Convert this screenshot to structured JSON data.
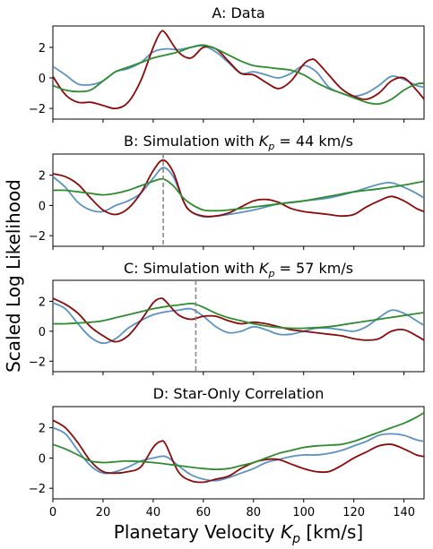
{
  "figure": {
    "ylabel": "Scaled Log Likelihood",
    "xlabel_main": "Planetary Velocity ",
    "xlabel_sym": "K",
    "xlabel_sub": "p",
    "xlabel_unit": " [km/s]"
  },
  "colors": {
    "blue": "#5b92c2",
    "red": "#8b0a0a",
    "green": "#2e8b2e",
    "marker": "#888888"
  },
  "chart_data": [
    {
      "type": "line",
      "title": "A: Data",
      "xlim": [
        0,
        148
      ],
      "ylim": [
        -2.7,
        3.4
      ],
      "xticks": [
        0,
        20,
        40,
        60,
        80,
        100,
        120,
        140
      ],
      "yticks": [
        -2,
        0,
        2
      ],
      "xticklabels_visible": false,
      "series": [
        {
          "color_key": "blue",
          "x": [
            0,
            5,
            10,
            15,
            20,
            25,
            30,
            35,
            40,
            45,
            50,
            55,
            60,
            65,
            70,
            75,
            80,
            85,
            90,
            95,
            100,
            105,
            110,
            115,
            120,
            125,
            130,
            135,
            140,
            145,
            148
          ],
          "y": [
            0.75,
            0.2,
            -0.4,
            -0.45,
            -0.2,
            0.4,
            0.6,
            1.0,
            1.7,
            1.9,
            1.85,
            2.0,
            2.1,
            1.7,
            1.0,
            0.3,
            0.4,
            0.2,
            0.0,
            0.3,
            0.8,
            0.4,
            -0.6,
            -1.0,
            -1.2,
            -1.0,
            -0.5,
            0.1,
            -0.1,
            -0.5,
            -0.6
          ]
        },
        {
          "color_key": "red",
          "x": [
            0,
            5,
            10,
            15,
            20,
            25,
            30,
            35,
            40,
            43,
            45,
            50,
            55,
            60,
            65,
            70,
            75,
            80,
            85,
            90,
            95,
            100,
            103,
            105,
            110,
            115,
            120,
            125,
            130,
            135,
            140,
            145,
            148
          ],
          "y": [
            0.1,
            -1.1,
            -1.6,
            -1.6,
            -1.8,
            -2.0,
            -1.6,
            -0.2,
            2.0,
            3.0,
            2.9,
            1.7,
            1.3,
            2.0,
            1.9,
            1.1,
            0.3,
            0.2,
            -0.3,
            -0.7,
            -0.2,
            0.9,
            1.2,
            1.1,
            0.2,
            -0.7,
            -1.2,
            -1.4,
            -1.0,
            -0.2,
            0.0,
            -0.8,
            -1.4
          ]
        },
        {
          "color_key": "green",
          "x": [
            0,
            5,
            10,
            15,
            20,
            25,
            30,
            35,
            40,
            45,
            50,
            55,
            60,
            65,
            70,
            75,
            80,
            85,
            90,
            95,
            100,
            105,
            110,
            115,
            120,
            125,
            130,
            135,
            140,
            145,
            148
          ],
          "y": [
            -0.5,
            -0.8,
            -0.9,
            -0.8,
            -0.2,
            0.4,
            0.7,
            1.0,
            1.3,
            1.5,
            1.7,
            2.0,
            2.15,
            1.9,
            1.5,
            1.1,
            0.8,
            0.7,
            0.6,
            0.5,
            0.2,
            -0.3,
            -0.7,
            -1.0,
            -1.3,
            -1.6,
            -1.7,
            -1.4,
            -0.8,
            -0.4,
            -0.35
          ]
        }
      ]
    },
    {
      "type": "line",
      "title_pre": "B: Simulation with ",
      "title_post": " = 44 km/s",
      "marker_kp": 44,
      "xlim": [
        0,
        148
      ],
      "ylim": [
        -2.7,
        3.4
      ],
      "xticks": [
        0,
        20,
        40,
        60,
        80,
        100,
        120,
        140
      ],
      "yticks": [
        -2,
        0,
        2
      ],
      "xticklabels_visible": false,
      "series": [
        {
          "color_key": "blue",
          "x": [
            0,
            5,
            10,
            15,
            20,
            25,
            30,
            35,
            40,
            44,
            48,
            52,
            55,
            60,
            65,
            70,
            80,
            90,
            100,
            110,
            120,
            130,
            135,
            140,
            145,
            148
          ],
          "y": [
            1.9,
            1.2,
            0.2,
            -0.3,
            -0.4,
            0.0,
            0.3,
            0.8,
            1.8,
            2.5,
            1.9,
            0.3,
            -0.4,
            -0.75,
            -0.7,
            -0.6,
            -0.3,
            0.1,
            0.3,
            0.5,
            0.9,
            1.4,
            1.5,
            1.2,
            0.8,
            0.5
          ]
        },
        {
          "color_key": "red",
          "x": [
            0,
            5,
            10,
            15,
            20,
            25,
            30,
            35,
            40,
            44,
            48,
            52,
            55,
            60,
            65,
            70,
            75,
            80,
            85,
            90,
            95,
            100,
            105,
            110,
            115,
            120,
            125,
            130,
            135,
            140,
            145,
            148
          ],
          "y": [
            2.1,
            1.9,
            1.4,
            0.5,
            -0.3,
            -0.6,
            -0.2,
            0.8,
            2.3,
            3.0,
            2.2,
            0.3,
            -0.4,
            -0.7,
            -0.7,
            -0.5,
            -0.1,
            0.3,
            0.4,
            0.2,
            -0.2,
            -0.4,
            -0.5,
            -0.6,
            -0.7,
            -0.6,
            -0.1,
            0.3,
            0.6,
            0.3,
            -0.2,
            -0.4
          ]
        },
        {
          "color_key": "green",
          "x": [
            0,
            5,
            10,
            15,
            20,
            25,
            30,
            35,
            40,
            44,
            48,
            52,
            55,
            60,
            65,
            70,
            80,
            90,
            100,
            110,
            120,
            130,
            140,
            148
          ],
          "y": [
            1.0,
            1.0,
            0.9,
            0.8,
            0.7,
            0.8,
            1.0,
            1.3,
            1.6,
            1.75,
            1.3,
            0.5,
            0.1,
            -0.3,
            -0.35,
            -0.3,
            -0.1,
            0.1,
            0.3,
            0.6,
            0.9,
            1.1,
            1.35,
            1.6
          ]
        }
      ]
    },
    {
      "type": "line",
      "title_pre": "C: Simulation with ",
      "title_post": " = 57 km/s",
      "marker_kp": 57,
      "xlim": [
        0,
        148
      ],
      "ylim": [
        -2.7,
        3.4
      ],
      "xticks": [
        0,
        20,
        40,
        60,
        80,
        100,
        120,
        140
      ],
      "yticks": [
        -2,
        0,
        2
      ],
      "xticklabels_visible": false,
      "series": [
        {
          "color_key": "blue",
          "x": [
            0,
            5,
            10,
            15,
            20,
            25,
            30,
            35,
            40,
            45,
            50,
            55,
            60,
            65,
            70,
            75,
            80,
            85,
            90,
            95,
            100,
            105,
            110,
            115,
            120,
            125,
            130,
            135,
            140,
            145,
            148
          ],
          "y": [
            1.9,
            1.5,
            0.5,
            -0.4,
            -0.8,
            -0.5,
            0.2,
            0.7,
            1.1,
            1.3,
            1.4,
            1.5,
            1.0,
            0.3,
            -0.1,
            0.0,
            0.3,
            0.1,
            -0.2,
            -0.2,
            0.0,
            0.2,
            0.2,
            0.1,
            0.0,
            0.3,
            0.9,
            1.4,
            1.2,
            0.7,
            0.4
          ]
        },
        {
          "color_key": "red",
          "x": [
            0,
            5,
            10,
            15,
            20,
            25,
            30,
            35,
            40,
            43,
            45,
            50,
            55,
            60,
            65,
            70,
            75,
            80,
            85,
            90,
            95,
            100,
            105,
            110,
            115,
            120,
            125,
            130,
            135,
            140,
            145,
            148
          ],
          "y": [
            2.2,
            1.8,
            1.2,
            0.3,
            -0.3,
            -0.7,
            -0.3,
            0.7,
            1.9,
            2.2,
            2.0,
            1.1,
            0.8,
            1.0,
            1.0,
            0.7,
            0.5,
            0.6,
            0.5,
            0.3,
            0.1,
            0.0,
            -0.1,
            -0.2,
            -0.3,
            -0.5,
            -0.6,
            -0.5,
            0.0,
            0.1,
            -0.3,
            -0.6
          ]
        },
        {
          "color_key": "green",
          "x": [
            0,
            5,
            10,
            15,
            20,
            25,
            30,
            35,
            40,
            45,
            50,
            55,
            57,
            60,
            65,
            70,
            75,
            80,
            85,
            90,
            95,
            100,
            110,
            120,
            130,
            140,
            148
          ],
          "y": [
            0.5,
            0.5,
            0.55,
            0.6,
            0.7,
            0.9,
            1.1,
            1.3,
            1.5,
            1.65,
            1.75,
            1.85,
            1.8,
            1.6,
            1.2,
            0.9,
            0.7,
            0.5,
            0.35,
            0.25,
            0.2,
            0.2,
            0.3,
            0.55,
            0.8,
            1.05,
            1.25
          ]
        }
      ]
    },
    {
      "type": "line",
      "title": "D: Star-Only Correlation",
      "xlim": [
        0,
        148
      ],
      "ylim": [
        -2.7,
        3.4
      ],
      "xticks": [
        0,
        20,
        40,
        60,
        80,
        100,
        120,
        140
      ],
      "yticks": [
        -2,
        0,
        2
      ],
      "xticklabels": [
        "0",
        "20",
        "40",
        "60",
        "80",
        "100",
        "120",
        "140"
      ],
      "xticklabels_visible": true,
      "series": [
        {
          "color_key": "blue",
          "x": [
            0,
            5,
            10,
            15,
            20,
            25,
            30,
            35,
            40,
            45,
            50,
            55,
            60,
            65,
            70,
            75,
            80,
            85,
            90,
            95,
            100,
            105,
            110,
            115,
            120,
            125,
            130,
            135,
            140,
            145,
            148
          ],
          "y": [
            2.0,
            1.6,
            0.5,
            -0.5,
            -1.0,
            -0.9,
            -0.6,
            -0.2,
            0.0,
            0.1,
            -0.5,
            -1.1,
            -1.4,
            -1.5,
            -1.3,
            -1.0,
            -0.7,
            -0.3,
            -0.1,
            0.1,
            0.2,
            0.2,
            0.3,
            0.5,
            0.8,
            1.1,
            1.5,
            1.6,
            1.5,
            1.2,
            1.1
          ]
        },
        {
          "color_key": "red",
          "x": [
            0,
            5,
            10,
            15,
            20,
            25,
            30,
            35,
            40,
            43,
            45,
            50,
            55,
            60,
            65,
            70,
            75,
            80,
            85,
            90,
            95,
            100,
            105,
            110,
            115,
            120,
            125,
            130,
            135,
            140,
            145,
            148
          ],
          "y": [
            2.5,
            2.0,
            1.0,
            -0.2,
            -0.9,
            -1.0,
            -0.9,
            -0.6,
            0.7,
            1.1,
            0.9,
            -0.9,
            -1.5,
            -1.6,
            -1.4,
            -1.2,
            -0.7,
            -0.3,
            -0.1,
            -0.1,
            -0.4,
            -0.7,
            -0.9,
            -0.9,
            -0.5,
            0.0,
            0.4,
            0.8,
            0.9,
            0.6,
            0.2,
            0.1
          ]
        },
        {
          "color_key": "green",
          "x": [
            0,
            5,
            10,
            15,
            20,
            25,
            30,
            40,
            50,
            60,
            65,
            70,
            75,
            80,
            85,
            90,
            95,
            100,
            105,
            110,
            115,
            120,
            125,
            130,
            135,
            140,
            145,
            148
          ],
          "y": [
            0.9,
            0.6,
            0.2,
            -0.2,
            -0.3,
            -0.25,
            -0.2,
            -0.3,
            -0.5,
            -0.7,
            -0.75,
            -0.7,
            -0.5,
            -0.3,
            0.0,
            0.3,
            0.5,
            0.7,
            0.8,
            0.85,
            0.9,
            1.1,
            1.4,
            1.7,
            2.0,
            2.3,
            2.7,
            3.0
          ]
        }
      ]
    }
  ]
}
